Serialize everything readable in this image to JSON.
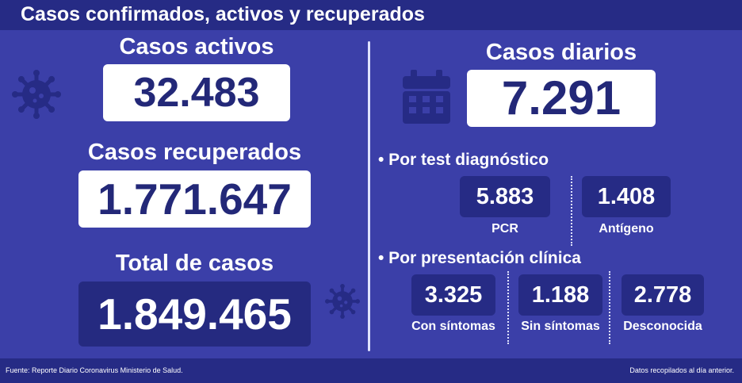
{
  "header": {
    "title": "Casos confirmados, activos y recuperados"
  },
  "left": {
    "active_label": "Casos activos",
    "active_value": "32.483",
    "recovered_label": "Casos recuperados",
    "recovered_value": "1.771.647",
    "total_label": "Total de casos",
    "total_value": "1.849.465"
  },
  "right": {
    "daily_label": "Casos diarios",
    "daily_value": "7.291",
    "test_section": "• Por test diagnóstico",
    "pcr_value": "5.883",
    "pcr_label": "PCR",
    "antigen_value": "1.408",
    "antigen_label": "Antígeno",
    "clinical_section": "• Por presentación clínica",
    "with_symptoms_value": "3.325",
    "with_symptoms_label": "Con síntomas",
    "without_symptoms_value": "1.188",
    "without_symptoms_label": "Sin síntomas",
    "unknown_value": "2.778",
    "unknown_label": "Desconocida"
  },
  "footer": {
    "source": "Fuente: Reporte Diario Coronavirus Ministerio de Salud.",
    "note": "Datos recopilados al día anterior."
  },
  "icons": [
    "virus-icon",
    "calendar-icon"
  ],
  "colors": {
    "background": "#3b3fa8",
    "dark_bar": "#262b85",
    "box_text": "#232878",
    "icon": "#262b85"
  }
}
